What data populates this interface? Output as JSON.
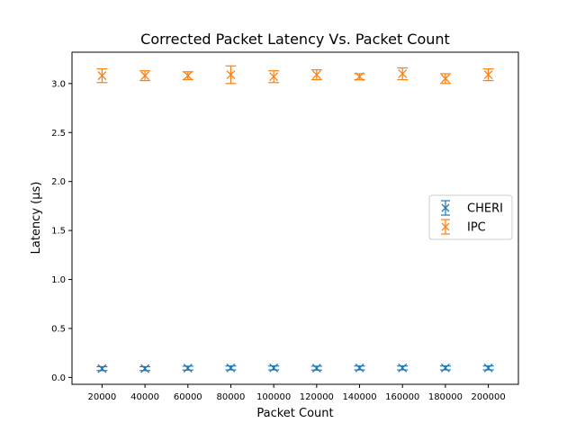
{
  "chart_data": {
    "type": "scatter",
    "title": "Corrected Packet Latency Vs. Packet Count",
    "xlabel": "Packet Count",
    "ylabel": "Latency (µs)",
    "xlim": [
      6000,
      214000
    ],
    "ylim": [
      -0.07,
      3.32
    ],
    "xticks": [
      20000,
      40000,
      60000,
      80000,
      100000,
      120000,
      140000,
      160000,
      180000,
      200000
    ],
    "yticks": [
      0.0,
      0.5,
      1.0,
      1.5,
      2.0,
      2.5,
      3.0
    ],
    "xtick_labels": [
      "20000",
      "40000",
      "60000",
      "80000",
      "100000",
      "120000",
      "140000",
      "160000",
      "180000",
      "200000"
    ],
    "ytick_labels": [
      "0.0",
      "0.5",
      "1.0",
      "1.5",
      "2.0",
      "2.5",
      "3.0"
    ],
    "x": [
      20000,
      40000,
      60000,
      80000,
      100000,
      120000,
      140000,
      160000,
      180000,
      200000
    ],
    "grid": false,
    "legend_position": "center-right",
    "series": [
      {
        "name": "CHERI",
        "color": "#1f77b4",
        "marker": "x",
        "values": [
          0.09,
          0.09,
          0.095,
          0.097,
          0.097,
          0.095,
          0.097,
          0.097,
          0.097,
          0.097
        ],
        "errors": [
          0.02,
          0.02,
          0.02,
          0.02,
          0.02,
          0.02,
          0.02,
          0.02,
          0.02,
          0.02
        ]
      },
      {
        "name": "IPC",
        "color": "#ff7f0e",
        "marker": "x",
        "values": [
          3.08,
          3.08,
          3.08,
          3.09,
          3.07,
          3.09,
          3.07,
          3.1,
          3.05,
          3.09
        ],
        "errors": [
          0.07,
          0.05,
          0.04,
          0.09,
          0.06,
          0.05,
          0.03,
          0.06,
          0.05,
          0.06
        ]
      }
    ]
  }
}
